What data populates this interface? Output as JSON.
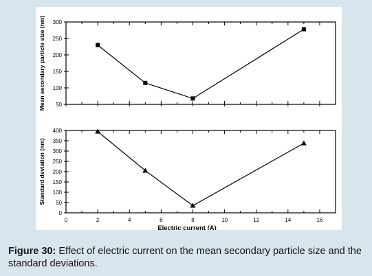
{
  "chart_data": [
    {
      "type": "line",
      "ylabel": "Mean secondary particle size (nm)",
      "xlabel": "",
      "ylim": [
        50,
        300
      ],
      "xlim": [
        0,
        17
      ],
      "yticks": [
        50,
        100,
        150,
        200,
        250,
        300
      ],
      "marker": "square",
      "series": [
        {
          "x": [
            2,
            5,
            8,
            15
          ],
          "values": [
            230,
            115,
            68,
            278
          ]
        }
      ]
    },
    {
      "type": "line",
      "ylabel": "Standard deviation (nm)",
      "xlabel": "Electric current (A)",
      "ylim": [
        0,
        400
      ],
      "xlim": [
        0,
        17
      ],
      "yticks": [
        0,
        50,
        100,
        150,
        200,
        250,
        300,
        350,
        400
      ],
      "xticks": [
        0,
        2,
        4,
        6,
        8,
        10,
        12,
        14,
        16
      ],
      "marker": "triangle",
      "series": [
        {
          "x": [
            2,
            5,
            8,
            15
          ],
          "values": [
            395,
            205,
            35,
            338
          ]
        }
      ]
    }
  ],
  "caption": {
    "label": "Figure 30:",
    "text": " Effect of electric current on the mean secondary particle size and the standard deviations."
  },
  "colors": {
    "background": "#d9e5ec",
    "panel": "#ffffff",
    "ink": "#000000"
  }
}
